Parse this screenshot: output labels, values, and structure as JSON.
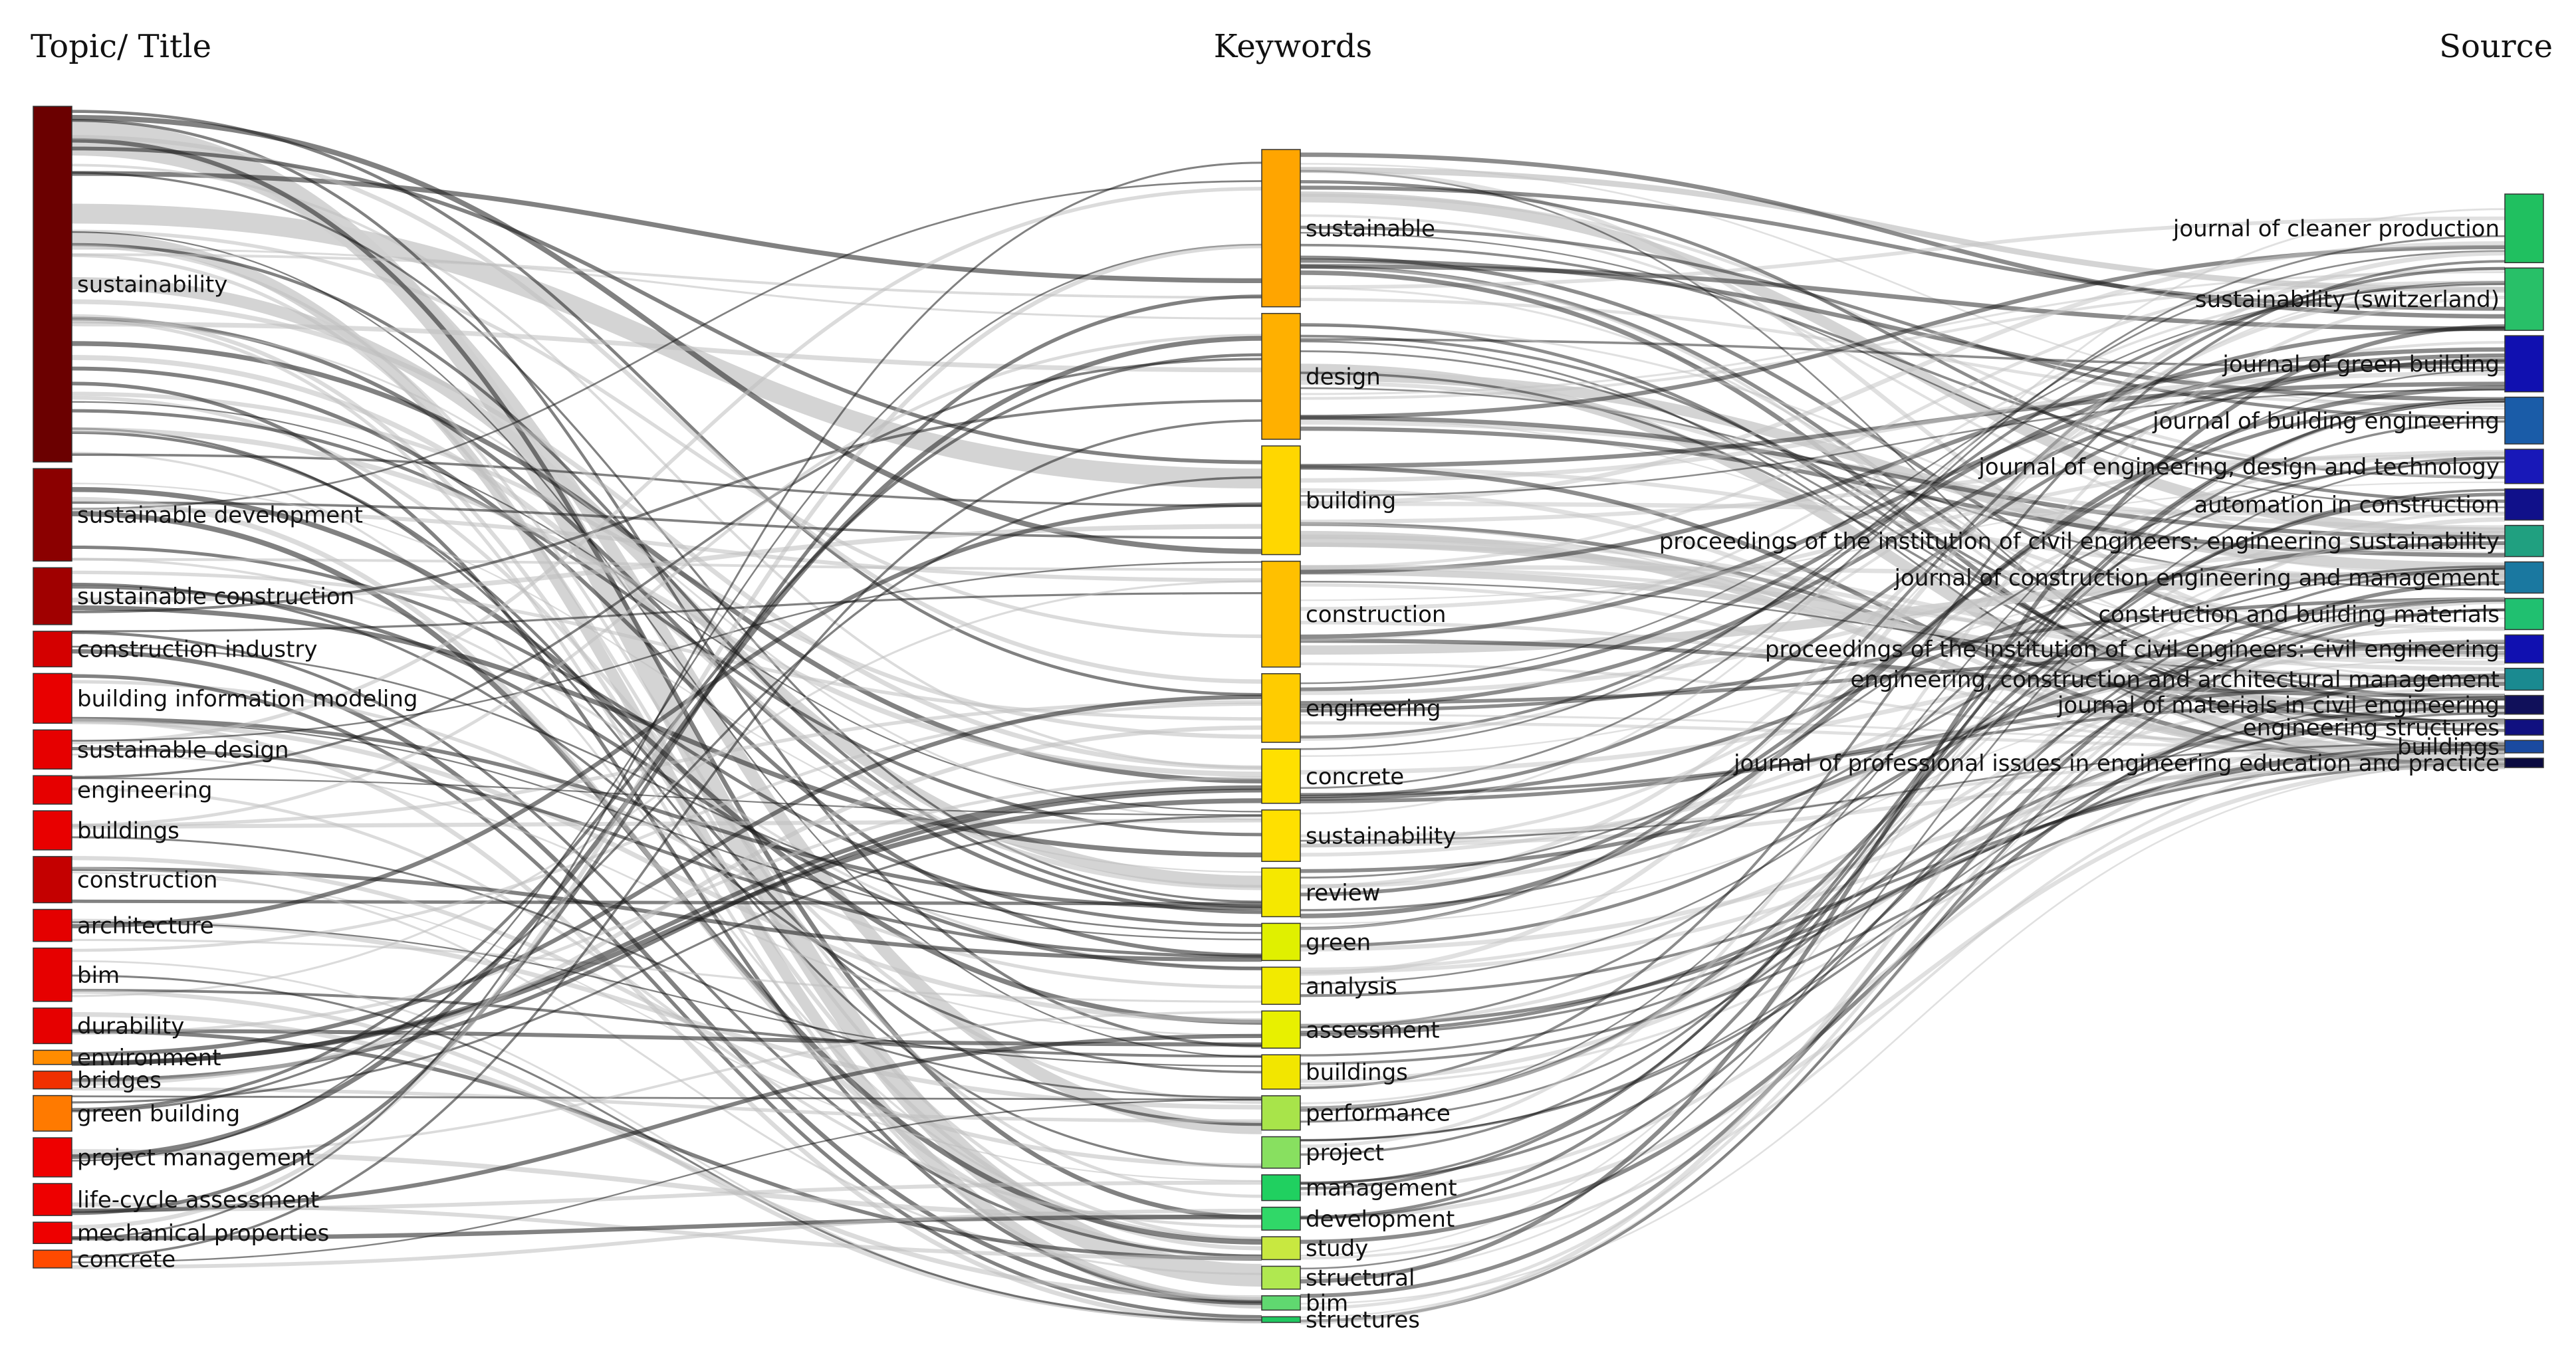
{
  "headers": {
    "topic": "Topic/ Title",
    "keywords": "Keywords",
    "source": "Source"
  },
  "topics": [
    {
      "label": "sustainability",
      "color": "#6b0000",
      "weight": 10
    },
    {
      "label": "sustainable development",
      "color": "#8b0000",
      "weight": 2.6
    },
    {
      "label": "sustainable construction",
      "color": "#a00000",
      "weight": 1.6
    },
    {
      "label": "construction industry",
      "color": "#d40000",
      "weight": 1.0
    },
    {
      "label": "building information modeling",
      "color": "#e80000",
      "weight": 1.4
    },
    {
      "label": "sustainable design",
      "color": "#e60000",
      "weight": 1.1
    },
    {
      "label": "engineering",
      "color": "#e60000",
      "weight": 0.8
    },
    {
      "label": "buildings",
      "color": "#e80000",
      "weight": 1.1
    },
    {
      "label": "construction",
      "color": "#c40000",
      "weight": 1.3
    },
    {
      "label": "architecture",
      "color": "#e40000",
      "weight": 0.9
    },
    {
      "label": "bim",
      "color": "#e60000",
      "weight": 1.5
    },
    {
      "label": "durability",
      "color": "#e60000",
      "weight": 1.0
    },
    {
      "label": "environment",
      "color": "#ff8c00",
      "weight": 0.4
    },
    {
      "label": "bridges",
      "color": "#f03000",
      "weight": 0.5
    },
    {
      "label": "green building",
      "color": "#ff7a00",
      "weight": 1.0
    },
    {
      "label": "project management",
      "color": "#ee0000",
      "weight": 1.1
    },
    {
      "label": "life-cycle assessment",
      "color": "#ee0000",
      "weight": 0.9
    },
    {
      "label": "mechanical properties",
      "color": "#ee0000",
      "weight": 0.6
    },
    {
      "label": "concrete",
      "color": "#ff4a00",
      "weight": 0.5
    }
  ],
  "keywords": [
    {
      "label": "sustainable",
      "color": "#ffa500",
      "weight": 5.5
    },
    {
      "label": "design",
      "color": "#ffb000",
      "weight": 4.4
    },
    {
      "label": "building",
      "color": "#ffd700",
      "weight": 3.8
    },
    {
      "label": "construction",
      "color": "#ffc000",
      "weight": 3.7
    },
    {
      "label": "engineering",
      "color": "#ffcc00",
      "weight": 2.4
    },
    {
      "label": "concrete",
      "color": "#ffe000",
      "weight": 1.9
    },
    {
      "label": "sustainability",
      "color": "#ffe000",
      "weight": 1.8
    },
    {
      "label": "review",
      "color": "#f5e800",
      "weight": 1.7
    },
    {
      "label": "green",
      "color": "#e0f000",
      "weight": 1.3
    },
    {
      "label": "analysis",
      "color": "#f2ea00",
      "weight": 1.3
    },
    {
      "label": "assessment",
      "color": "#e8f000",
      "weight": 1.3
    },
    {
      "label": "buildings",
      "color": "#f2e600",
      "weight": 1.2
    },
    {
      "label": "performance",
      "color": "#a8e44a",
      "weight": 1.2
    },
    {
      "label": "project",
      "color": "#88e060",
      "weight": 1.1
    },
    {
      "label": "management",
      "color": "#20d060",
      "weight": 0.9
    },
    {
      "label": "development",
      "color": "#30d868",
      "weight": 0.8
    },
    {
      "label": "study",
      "color": "#c8e840",
      "weight": 0.8
    },
    {
      "label": "structural",
      "color": "#b0e850",
      "weight": 0.8
    },
    {
      "label": "bim",
      "color": "#60d870",
      "weight": 0.5
    },
    {
      "label": "structures",
      "color": "#20c860",
      "weight": 0.2
    }
  ],
  "sources": [
    {
      "label": "journal of cleaner production",
      "color": "#20c060",
      "weight": 2.2
    },
    {
      "label": "sustainability (switzerland)",
      "color": "#28c068",
      "weight": 2.0
    },
    {
      "label": "journal of green building",
      "color": "#1010b0",
      "weight": 1.8
    },
    {
      "label": "journal of building engineering",
      "color": "#1a5ca8",
      "weight": 1.5
    },
    {
      "label": "journal of engineering, design and technology",
      "color": "#1818b8",
      "weight": 1.1
    },
    {
      "label": "automation in construction",
      "color": "#10108a",
      "weight": 1.0
    },
    {
      "label": "proceedings of the institution of civil engineers: engineering sustainability",
      "color": "#20a080",
      "weight": 1.0
    },
    {
      "label": "journal of construction engineering and management",
      "color": "#1a78a0",
      "weight": 1.0
    },
    {
      "label": "construction and building materials",
      "color": "#20c070",
      "weight": 1.0
    },
    {
      "label": "proceedings of the institution of civil engineers: civil engineering",
      "color": "#1010b0",
      "weight": 0.9
    },
    {
      "label": "engineering, construction and architectural management",
      "color": "#1a8a90",
      "weight": 0.7
    },
    {
      "label": "journal of materials in civil engineering",
      "color": "#10105a",
      "weight": 0.6
    },
    {
      "label": "engineering structures",
      "color": "#101080",
      "weight": 0.5
    },
    {
      "label": "buildings",
      "color": "#1a4aa0",
      "weight": 0.4
    },
    {
      "label": "journal of professional issues in engineering education and practice",
      "color": "#0a0a40",
      "weight": 0.3
    }
  ]
}
